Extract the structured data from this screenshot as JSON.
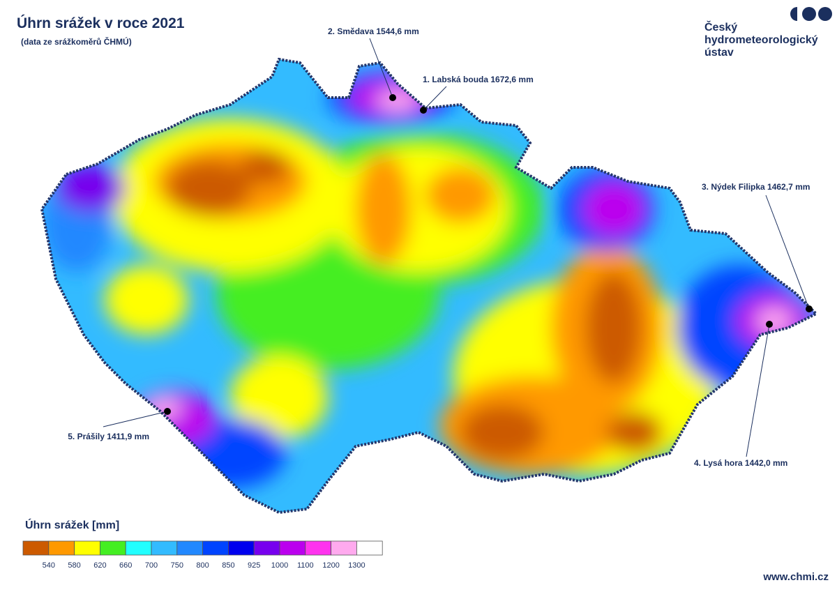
{
  "header": {
    "title": "Úhrn srážek v roce 2021",
    "subtitle": "(data ze srážkoměrů ČHMÚ)"
  },
  "logo": {
    "lines": [
      "Český",
      "hydrometeorologický",
      "ústav"
    ]
  },
  "stations": [
    "1. Labská bouda 1672,6 mm",
    "2. Smědava 1544,6 mm",
    "3. Nýdek Filipka 1462,7 mm",
    "4. Lysá hora 1442,0 mm",
    "5. Prášily 1411,9 mm"
  ],
  "legend": {
    "title": "Úhrn srážek [mm]",
    "colors": [
      "#cc5a00",
      "#ff9900",
      "#ffff00",
      "#44ee22",
      "#22ffff",
      "#33bbff",
      "#2288ff",
      "#0044ff",
      "#0000ee",
      "#7700ee",
      "#bb00ee",
      "#ff33ee",
      "#ffaaee",
      "#ffffff"
    ],
    "ticks": [
      540,
      580,
      620,
      660,
      700,
      750,
      800,
      850,
      925,
      1000,
      1100,
      1200,
      1300
    ]
  },
  "footer": {
    "url": "www.chmi.cz"
  }
}
